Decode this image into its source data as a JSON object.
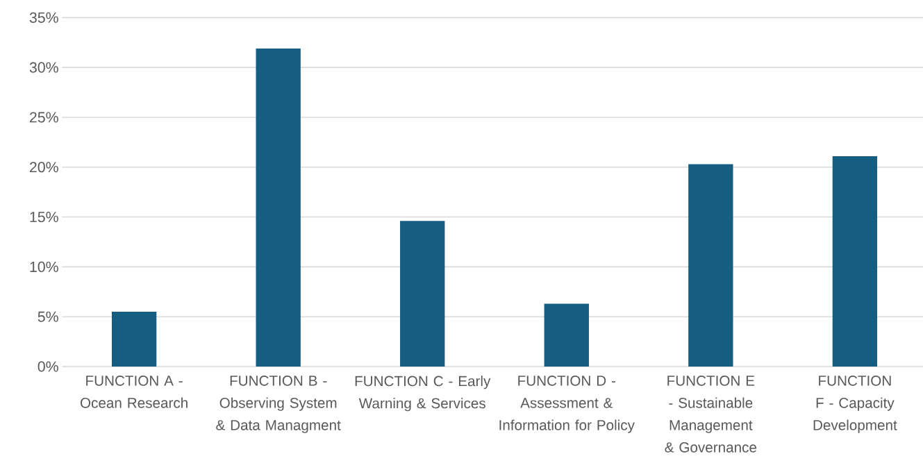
{
  "chart_data": {
    "type": "bar",
    "categories": [
      "FUNCTION A - Ocean Research",
      "FUNCTION B - Observing System & Data Managment",
      "FUNCTION C - Early Warning & Services",
      "FUNCTION D - Assessment & Information for Policy",
      "FUNCTION E - Sustainable Management & Governance",
      "FUNCTION F - Capacity Development"
    ],
    "values": [
      5.5,
      31.9,
      14.6,
      6.3,
      20.3,
      21.1
    ],
    "color": "#165e81",
    "ylim": [
      0,
      35
    ],
    "yticks": [
      {
        "value": 0,
        "label": "0%"
      },
      {
        "value": 5,
        "label": "5%"
      },
      {
        "value": 10,
        "label": "10%"
      },
      {
        "value": 15,
        "label": "15%"
      },
      {
        "value": 20,
        "label": "20%"
      },
      {
        "value": 25,
        "label": "25%"
      },
      {
        "value": 30,
        "label": "30%"
      },
      {
        "value": 35,
        "label": "35%"
      }
    ],
    "grid": "y"
  }
}
